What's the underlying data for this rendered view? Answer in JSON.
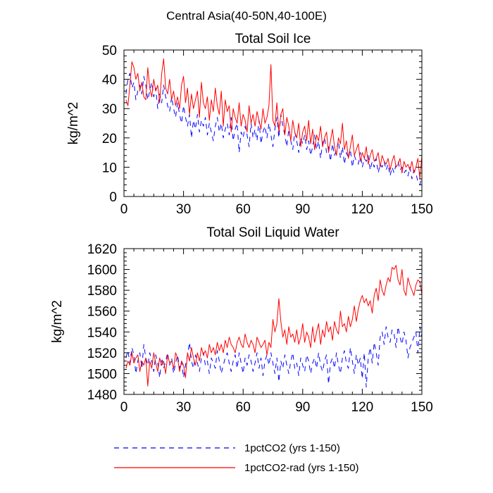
{
  "figure": {
    "title": "Central Asia(40-50N,40-100E)"
  },
  "legend": [
    {
      "label": "1pctCO2 (yrs 1-150)",
      "color": "#0000ff",
      "dash": "dashed"
    },
    {
      "label": "1pctCO2-rad (yrs 1-150)",
      "color": "#ff0000",
      "dash": "solid"
    }
  ],
  "chart_data": [
    {
      "type": "line",
      "title": "Total Soil Ice",
      "ylabel": "kg/m^2",
      "xlabel": "",
      "xlim": [
        0,
        150
      ],
      "ylim": [
        0,
        50
      ],
      "xticks": [
        0,
        30,
        60,
        90,
        120,
        150
      ],
      "yticks": [
        0,
        10,
        20,
        30,
        40,
        50
      ],
      "grid": false,
      "x_start": 1,
      "series": [
        {
          "name": "1pctCO2 (yrs 1-150)",
          "color": "#0000ff",
          "values": [
            35,
            40,
            42,
            37,
            39,
            33,
            36,
            38,
            35,
            41,
            38,
            33,
            36,
            39,
            34,
            37,
            30,
            35,
            32,
            38,
            34,
            31,
            29,
            34,
            30,
            27,
            32,
            28,
            25,
            31,
            27,
            24,
            28,
            20,
            26,
            23,
            28,
            22,
            26,
            24,
            27,
            21,
            25,
            22,
            19,
            24,
            27,
            22,
            25,
            20,
            23,
            25,
            21,
            27,
            19,
            23,
            25,
            15,
            22,
            20,
            24,
            21,
            17,
            25,
            20,
            23,
            19,
            26,
            18,
            22,
            24,
            20,
            25,
            21,
            17,
            23,
            27,
            20,
            28,
            24,
            21,
            17,
            23,
            19,
            16,
            22,
            19,
            15,
            20,
            18,
            21,
            16,
            19,
            14,
            17,
            21,
            16,
            19,
            13,
            18,
            20,
            15,
            17,
            12,
            18,
            14,
            16,
            19,
            13,
            17,
            11,
            15,
            13,
            16,
            10,
            14,
            12,
            11,
            15,
            10,
            13,
            12,
            14,
            9,
            12,
            10,
            13,
            8,
            11,
            10,
            12,
            9,
            11,
            7,
            10,
            8,
            11,
            12,
            9,
            10,
            8,
            9,
            7,
            10,
            6,
            9,
            8,
            5,
            4,
            7
          ]
        },
        {
          "name": "1pctCO2-rad (yrs 1-150)",
          "color": "#ff0000",
          "values": [
            33,
            31,
            38,
            46,
            44,
            40,
            42,
            36,
            39,
            34,
            33,
            44,
            37,
            34,
            40,
            36,
            38,
            32,
            42,
            47,
            37,
            35,
            40,
            33,
            36,
            31,
            34,
            30,
            38,
            41,
            32,
            37,
            28,
            35,
            30,
            33,
            36,
            27,
            39,
            32,
            30,
            34,
            26,
            33,
            29,
            37,
            31,
            28,
            36,
            24,
            33,
            29,
            31,
            22,
            30,
            27,
            25,
            32,
            24,
            28,
            26,
            22,
            31,
            25,
            28,
            24,
            29,
            26,
            23,
            30,
            25,
            27,
            31,
            45,
            26,
            24,
            32,
            22,
            28,
            30,
            21,
            27,
            24,
            19,
            26,
            22,
            20,
            25,
            17,
            22,
            24,
            19,
            26,
            18,
            23,
            16,
            21,
            19,
            24,
            17,
            20,
            22,
            15,
            19,
            23,
            17,
            14,
            20,
            18,
            25,
            16,
            19,
            13,
            17,
            21,
            14,
            16,
            18,
            12,
            15,
            13,
            17,
            11,
            14,
            16,
            12,
            13,
            15,
            10,
            14,
            12,
            11,
            13,
            9,
            12,
            14,
            10,
            11,
            13,
            8,
            12,
            10,
            11,
            9,
            12,
            8,
            10,
            13,
            6,
            14
          ]
        }
      ]
    },
    {
      "type": "line",
      "title": "Total Soil Liquid Water",
      "ylabel": "kg/m^2",
      "xlabel": "",
      "xlim": [
        0,
        150
      ],
      "ylim": [
        1480,
        1620
      ],
      "xticks": [
        0,
        30,
        60,
        90,
        120,
        150
      ],
      "yticks": [
        1480,
        1500,
        1520,
        1540,
        1560,
        1580,
        1600,
        1620
      ],
      "grid": false,
      "x_start": 1,
      "series": [
        {
          "name": "1pctCO2 (yrs 1-150)",
          "color": "#0000ff",
          "values": [
            1515,
            1522,
            1510,
            1525,
            1518,
            1500,
            1512,
            1520,
            1505,
            1528,
            1515,
            1508,
            1520,
            1512,
            1502,
            1518,
            1510,
            1496,
            1515,
            1505,
            1512,
            1520,
            1508,
            1515,
            1500,
            1510,
            1518,
            1505,
            1512,
            1496,
            1508,
            1518,
            1530,
            1512,
            1505,
            1518,
            1510,
            1502,
            1515,
            1520,
            1508,
            1512,
            1500,
            1515,
            1510,
            1505,
            1522,
            1512,
            1500,
            1508,
            1515,
            1520,
            1510,
            1502,
            1512,
            1518,
            1505,
            1520,
            1510,
            1500,
            1515,
            1508,
            1518,
            1512,
            1502,
            1510,
            1520,
            1505,
            1515,
            1498,
            1512,
            1518,
            1508,
            1520,
            1510,
            1500,
            1515,
            1492,
            1512,
            1505,
            1518,
            1508,
            1500,
            1512,
            1520,
            1505,
            1510,
            1498,
            1515,
            1508,
            1502,
            1518,
            1512,
            1500,
            1510,
            1515,
            1505,
            1520,
            1508,
            1502,
            1512,
            1518,
            1490,
            1510,
            1515,
            1505,
            1520,
            1508,
            1500,
            1515,
            1522,
            1510,
            1505,
            1525,
            1512,
            1500,
            1518,
            1508,
            1515,
            1495,
            1520,
            1487,
            1515,
            1525,
            1510,
            1530,
            1520,
            1508,
            1535,
            1540,
            1528,
            1545,
            1535,
            1530,
            1542,
            1538,
            1525,
            1545,
            1535,
            1528,
            1540,
            1532,
            1515,
            1525,
            1530,
            1535,
            1540,
            1520,
            1545,
            1535
          ]
        },
        {
          "name": "1pctCO2-rad (yrs 1-150)",
          "color": "#ff0000",
          "values": [
            1505,
            1512,
            1508,
            1520,
            1510,
            1515,
            1518,
            1502,
            1512,
            1508,
            1515,
            1488,
            1512,
            1505,
            1520,
            1510,
            1502,
            1515,
            1508,
            1512,
            1500,
            1518,
            1510,
            1512,
            1505,
            1520,
            1515,
            1502,
            1512,
            1508,
            1496,
            1520,
            1512,
            1525,
            1515,
            1508,
            1520,
            1512,
            1525,
            1518,
            1522,
            1515,
            1528,
            1520,
            1525,
            1518,
            1530,
            1522,
            1528,
            1520,
            1532,
            1525,
            1535,
            1528,
            1525,
            1520,
            1530,
            1535,
            1528,
            1525,
            1538,
            1530,
            1525,
            1532,
            1528,
            1520,
            1535,
            1530,
            1525,
            1528,
            1532,
            1518,
            1530,
            1525,
            1552,
            1540,
            1548,
            1572,
            1550,
            1535,
            1542,
            1528,
            1545,
            1535,
            1538,
            1530,
            1542,
            1528,
            1535,
            1548,
            1530,
            1540,
            1535,
            1525,
            1545,
            1530,
            1540,
            1548,
            1528,
            1542,
            1535,
            1550,
            1540,
            1545,
            1532,
            1550,
            1542,
            1538,
            1560,
            1545,
            1548,
            1540,
            1555,
            1545,
            1552,
            1565,
            1550,
            1562,
            1570,
            1575,
            1568,
            1572,
            1565,
            1570,
            1558,
            1575,
            1582,
            1570,
            1590,
            1580,
            1575,
            1585,
            1592,
            1588,
            1602,
            1600,
            1604,
            1590,
            1585,
            1600,
            1580,
            1575,
            1592,
            1585,
            1580,
            1575,
            1585,
            1590,
            1588,
            1576
          ]
        }
      ]
    }
  ]
}
